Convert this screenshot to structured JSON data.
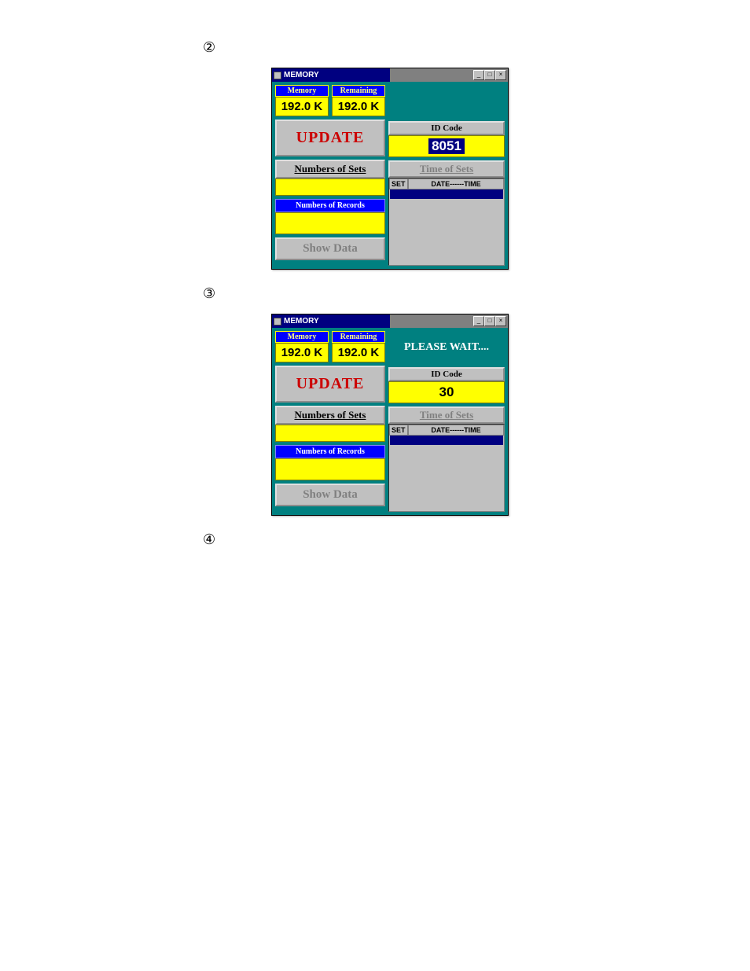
{
  "steps": {
    "s2": "②",
    "s3": "③",
    "s4": "④"
  },
  "window": {
    "title": "MEMORY",
    "memory": {
      "label": "Memory",
      "value": "192.0 K"
    },
    "remaining": {
      "label": "Remaining",
      "value": "192.0 K"
    },
    "update": "UPDATE",
    "numsets": "Numbers  of  Sets",
    "numrecords": "Numbers  of  Records",
    "showdata": "Show Data",
    "idcode_label": "ID Code",
    "timesets": "Time  of  Sets",
    "th_set": "SET",
    "th_dt": "DATE------TIME"
  },
  "win1": {
    "idcode": "8051",
    "wait": ""
  },
  "win2": {
    "idcode": "30",
    "wait": "PLEASE WAIT...."
  },
  "colors": {
    "teal": "#008080",
    "yellow": "#ffff00",
    "blue": "#0000ff",
    "navy": "#000080",
    "gray": "#c0c0c0",
    "red": "#cc0000"
  }
}
